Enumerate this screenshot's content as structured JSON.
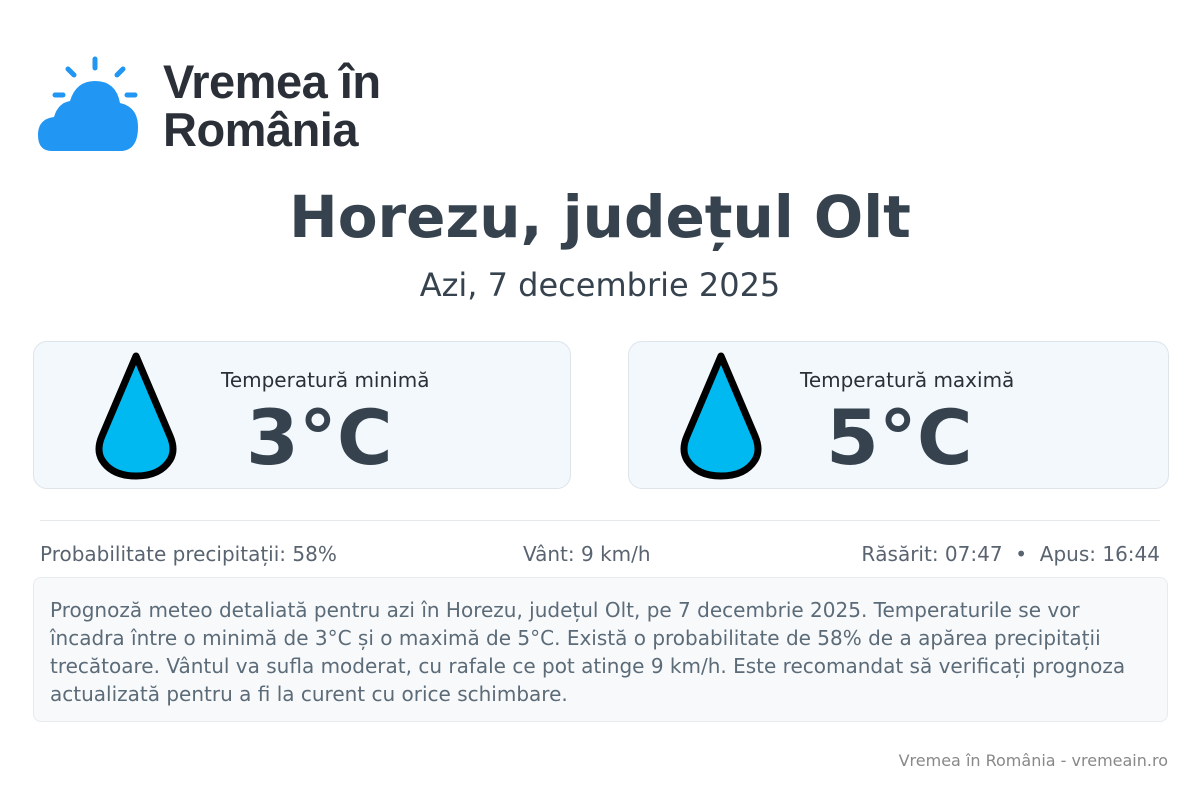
{
  "brand": {
    "name": "Vremea în România",
    "line1": "Vremea în",
    "line2": "România",
    "color": "#2196f3"
  },
  "header": {
    "title": "Horezu, județul Olt",
    "subtitle": "Azi, 7 decembrie 2025"
  },
  "cards": [
    {
      "label": "Temperatură minimă",
      "value": "3°C",
      "icon": "water-drop-icon"
    },
    {
      "label": "Temperatură maximă",
      "value": "5°C",
      "icon": "water-drop-icon"
    }
  ],
  "info": {
    "precipitation": "Probabilitate precipitații: 58%",
    "wind": "Vânt: 9 km/h",
    "sun": "Răsărit: 07:47  •  Apus: 16:44"
  },
  "description": "Prognoză meteo detaliată pentru azi în Horezu, județul Olt, pe 7 decembrie 2025. Temperaturile se vor încadra între o minimă de 3°C și o maximă de 5°C. Există o probabilitate de 58% de a apărea precipitații trecătoare. Vântul va sufla moderat, cu rafale ce pot atinge 9 km/h. Este recomandat să verificați prognoza actualizată pentru a fi la curent cu orice schimbare.",
  "footer": "Vremea în România - vremeain.ro",
  "colors": {
    "drop_fill": "#00b9f1",
    "text": "#36434f"
  }
}
